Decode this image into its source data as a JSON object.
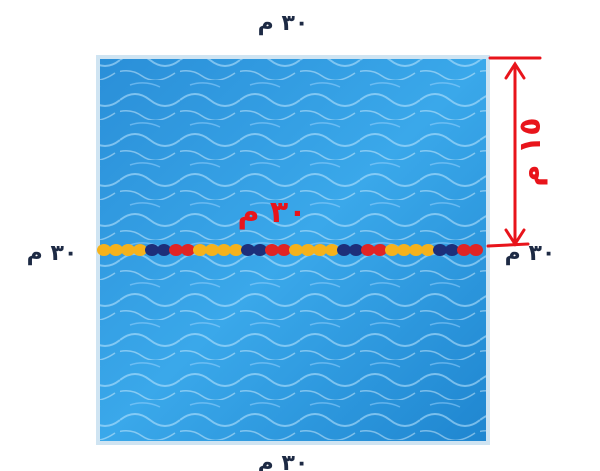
{
  "labels": {
    "top": "٣٠ م",
    "left": "٣٠ م",
    "right": "٣٠ م",
    "bottom": "٣٠ م"
  },
  "annotations": {
    "rope_length": "٣٠ م",
    "half_width": "١٥ م"
  }
}
